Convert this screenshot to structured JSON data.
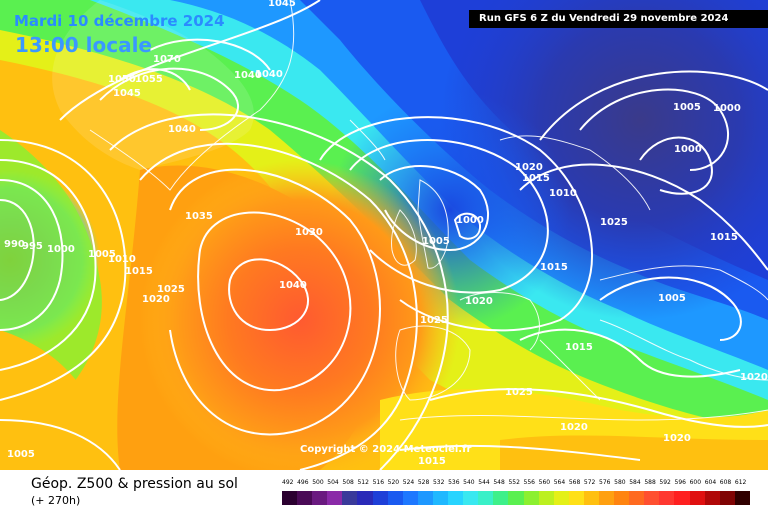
{
  "header": {
    "date": "Mardi 10 décembre 2024",
    "time": "13:00 locale",
    "run": "Run GFS 6 Z du Vendredi 29 novembre 2024"
  },
  "map": {
    "copyright": "Copyright © 2024 Meteociel.fr",
    "isobar_labels": [
      "1045",
      "1070",
      "1050",
      "1055",
      "1045",
      "1040",
      "1040",
      "1040",
      "1035",
      "990",
      "995",
      "1000",
      "1005",
      "1010",
      "1015",
      "1020",
      "1025",
      "1030",
      "1040",
      "1020",
      "1025",
      "1015",
      "1005",
      "1000",
      "1015",
      "1010",
      "1005",
      "1015",
      "1020",
      "1025",
      "1015",
      "1005",
      "1000",
      "1000",
      "1005",
      "1020",
      "1025",
      "1015",
      "1020",
      "1020"
    ]
  },
  "footer": {
    "product": "Géop. Z500 & pression au sol",
    "range": "(+ 270h)"
  },
  "legend": {
    "ticks": [
      "492",
      "496",
      "500",
      "504",
      "508",
      "512",
      "516",
      "520",
      "524",
      "528",
      "532",
      "536",
      "540",
      "544",
      "548",
      "552",
      "556",
      "560",
      "564",
      "568",
      "572",
      "576",
      "580",
      "584",
      "588",
      "592",
      "596",
      "600",
      "604",
      "608",
      "612"
    ],
    "colors": [
      "#2b0030",
      "#4a0a56",
      "#6a1a80",
      "#8a2aa8",
      "#3a3a9a",
      "#2a2ab8",
      "#1e3fd8",
      "#1a5af0",
      "#1e78ff",
      "#1e98ff",
      "#20b8ff",
      "#28d4ff",
      "#3ae8f0",
      "#3af0c8",
      "#3ef08a",
      "#5af050",
      "#8cf030",
      "#bcf020",
      "#e4f018",
      "#ffe018",
      "#ffc010",
      "#ffa010",
      "#ff8410",
      "#ff6a20",
      "#ff5030",
      "#ff3830",
      "#ff2020",
      "#e01010",
      "#b00808",
      "#800404",
      "#300000"
    ]
  }
}
